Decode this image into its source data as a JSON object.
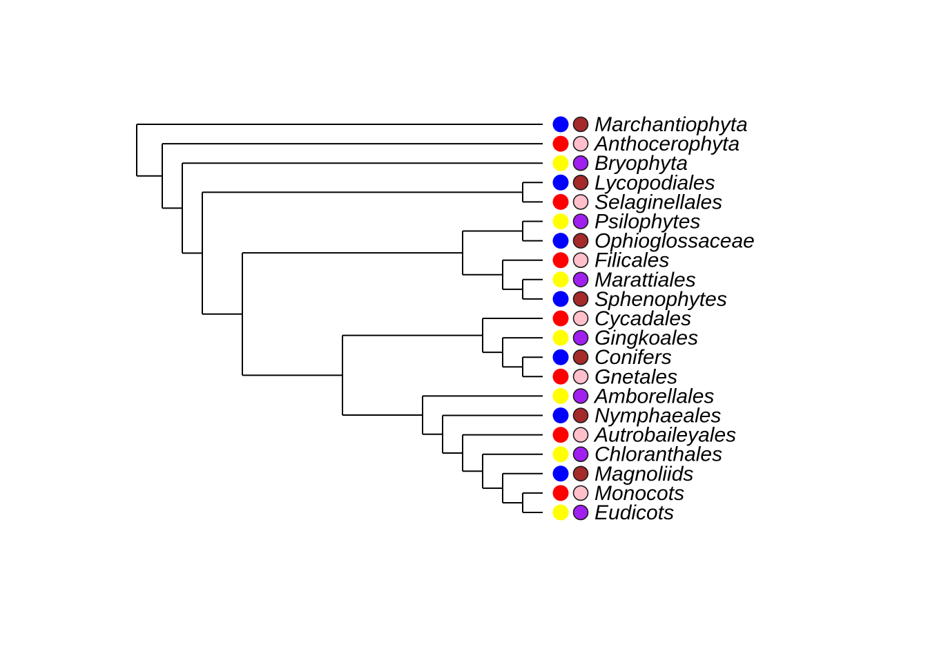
{
  "diagram": {
    "type": "phylogenetic-tree",
    "tips": [
      {
        "name": "Marchantiophyta",
        "trait_a": "#0000FF",
        "trait_b": "#A52A2A"
      },
      {
        "name": "Anthocerophyta",
        "trait_a": "#FF0000",
        "trait_b": "#FFC0CB"
      },
      {
        "name": "Bryophyta",
        "trait_a": "#FFFF00",
        "trait_b": "#A020F0"
      },
      {
        "name": "Lycopodiales",
        "trait_a": "#0000FF",
        "trait_b": "#A52A2A"
      },
      {
        "name": "Selaginellales",
        "trait_a": "#FF0000",
        "trait_b": "#FFC0CB"
      },
      {
        "name": "Psilophytes",
        "trait_a": "#FFFF00",
        "trait_b": "#A020F0"
      },
      {
        "name": "Ophioglossaceae",
        "trait_a": "#0000FF",
        "trait_b": "#A52A2A"
      },
      {
        "name": "Filicales",
        "trait_a": "#FF0000",
        "trait_b": "#FFC0CB"
      },
      {
        "name": "Marattiales",
        "trait_a": "#FFFF00",
        "trait_b": "#A020F0"
      },
      {
        "name": "Sphenophytes",
        "trait_a": "#0000FF",
        "trait_b": "#A52A2A"
      },
      {
        "name": "Cycadales",
        "trait_a": "#FF0000",
        "trait_b": "#FFC0CB"
      },
      {
        "name": "Gingkoales",
        "trait_a": "#FFFF00",
        "trait_b": "#A020F0"
      },
      {
        "name": "Conifers",
        "trait_a": "#0000FF",
        "trait_b": "#A52A2A"
      },
      {
        "name": "Gnetales",
        "trait_a": "#FF0000",
        "trait_b": "#FFC0CB"
      },
      {
        "name": "Amborellales",
        "trait_a": "#FFFF00",
        "trait_b": "#A020F0"
      },
      {
        "name": "Nymphaeales",
        "trait_a": "#0000FF",
        "trait_b": "#A52A2A"
      },
      {
        "name": "Autrobaileyales",
        "trait_a": "#FF0000",
        "trait_b": "#FFC0CB"
      },
      {
        "name": "Chloranthales",
        "trait_a": "#FFFF00",
        "trait_b": "#A020F0"
      },
      {
        "name": "Magnoliids",
        "trait_a": "#0000FF",
        "trait_b": "#A52A2A"
      },
      {
        "name": "Monocots",
        "trait_a": "#FF0000",
        "trait_b": "#FFC0CB"
      },
      {
        "name": "Eudicots",
        "trait_a": "#FFFF00",
        "trait_b": "#A020F0"
      }
    ],
    "newick": "(Marchantiophyta,(Anthocerophyta,(Bryophyta,((Lycopodiales,Selaginellales),(((Psilophytes,Ophioglossaceae),(Filicales,(Marattiales,Sphenophytes))),((Cycadales,(Gingkoales,(Conifers,Gnetales))),(Amborellales,(Nymphaeales,(Autrobaileyales,(Chloranthales,(Magnoliids,(Monocots,Eudicots))))))))))));"
  }
}
